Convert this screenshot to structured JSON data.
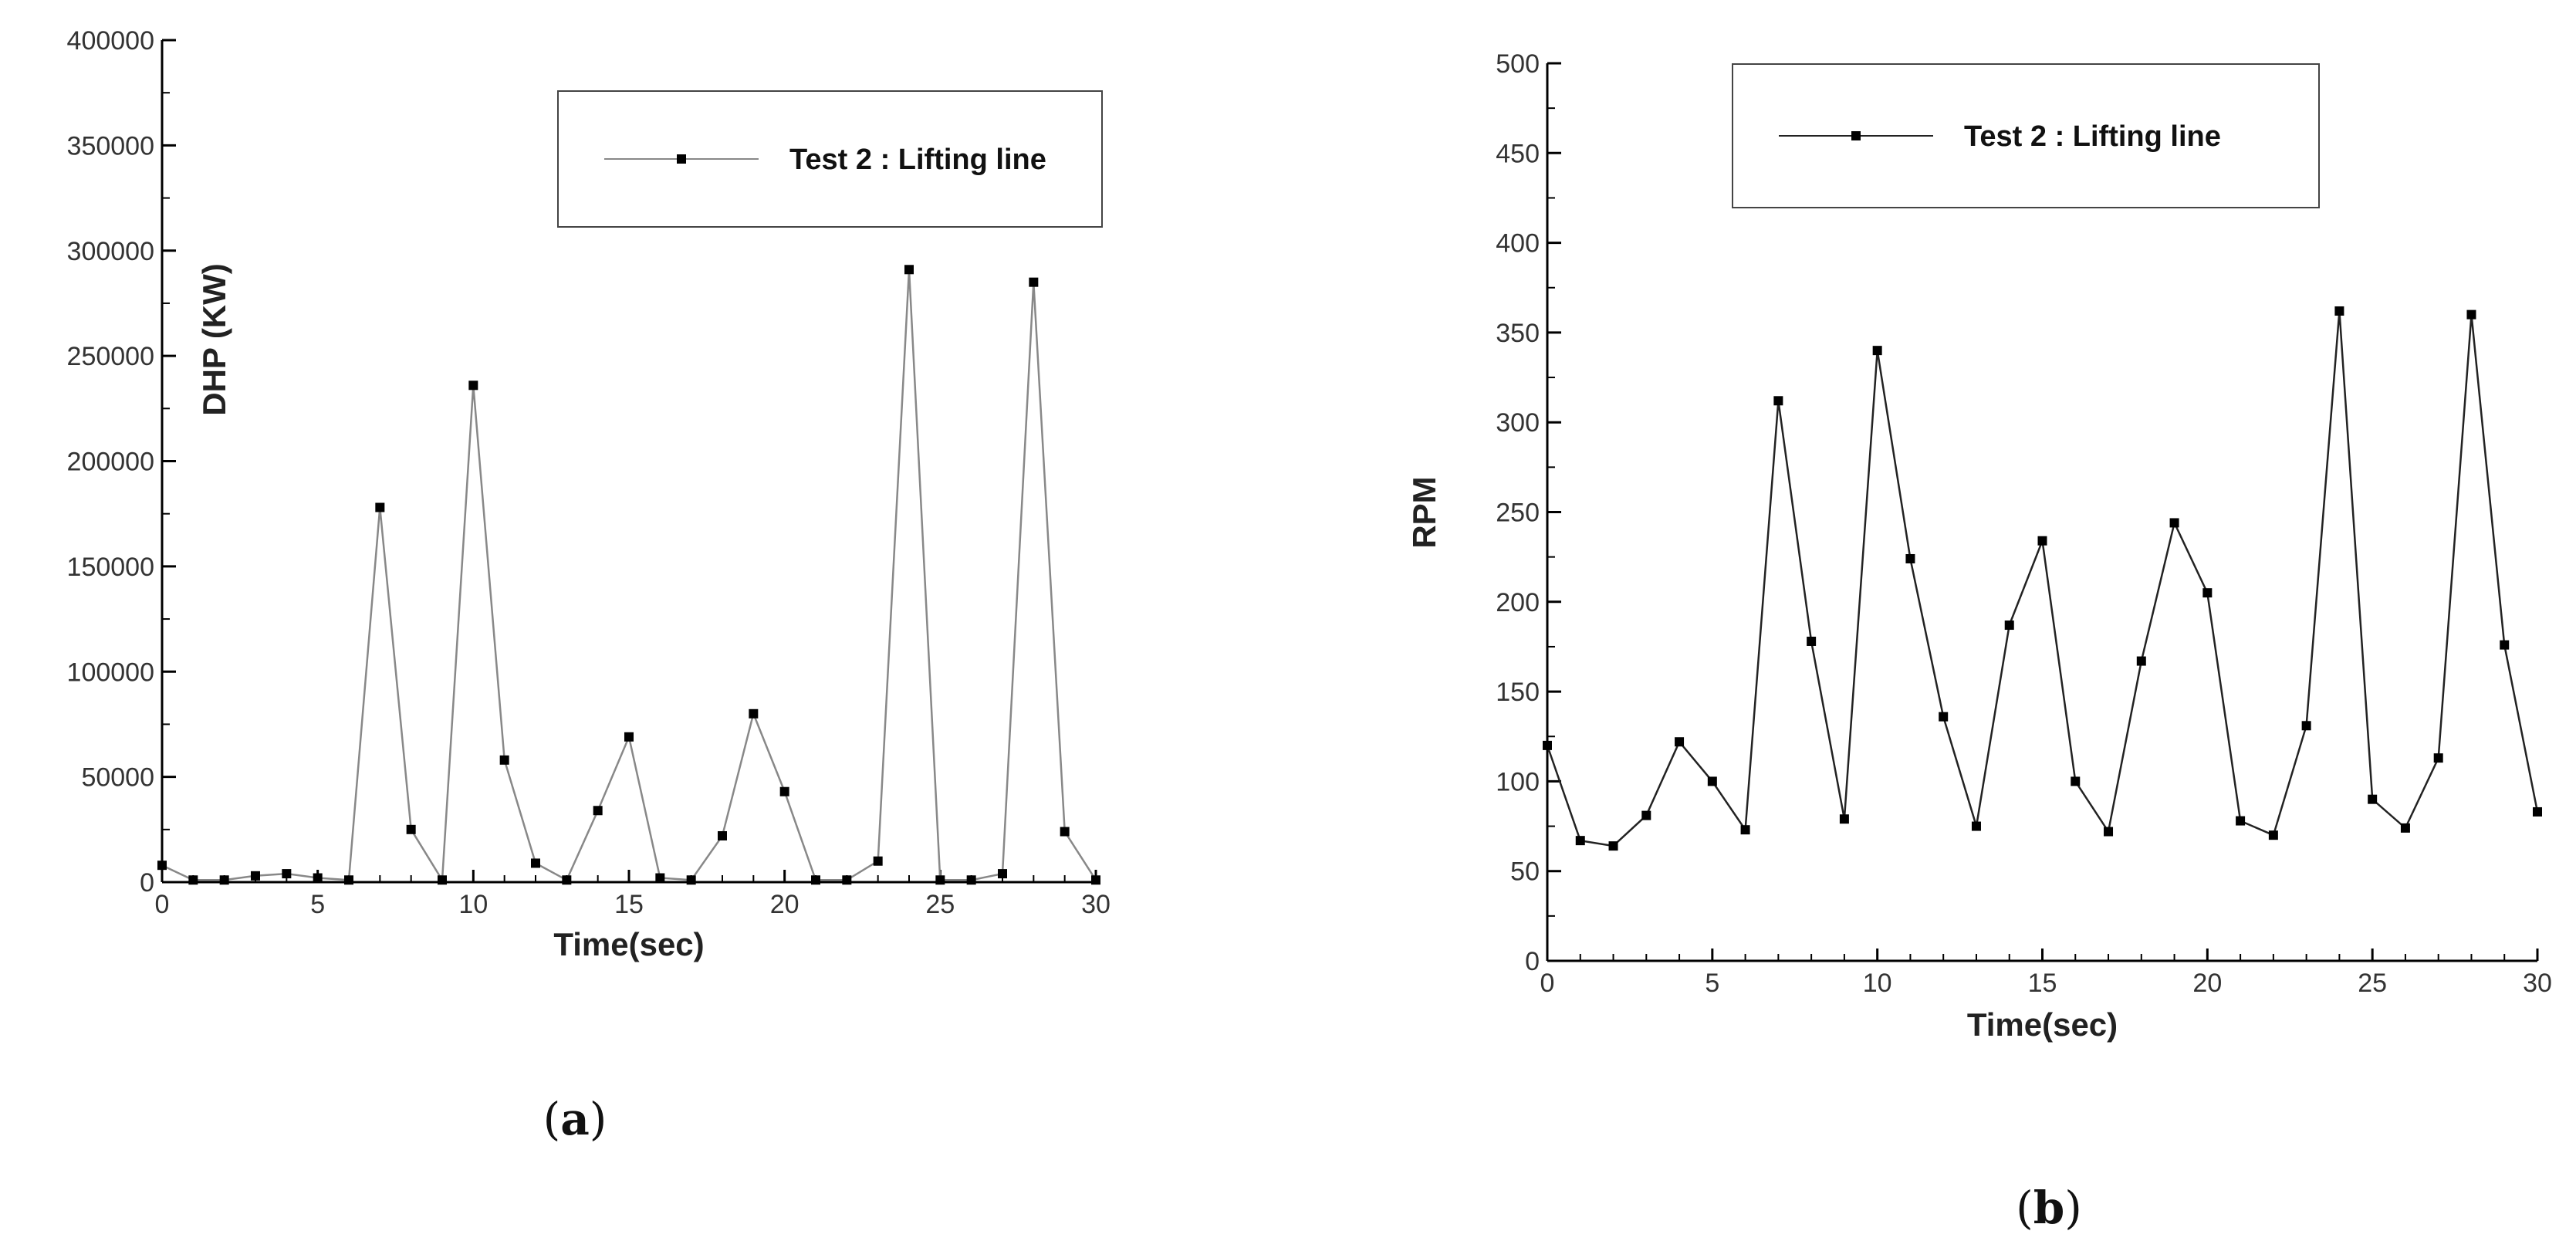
{
  "chart_data": [
    {
      "type": "line",
      "panel": "a",
      "panel_label": {
        "open": "(",
        "letter": "a",
        "close": ")"
      },
      "xlabel": "Time(sec)",
      "ylabel": "DHP (KW)",
      "xlim": [
        0,
        30
      ],
      "ylim": [
        0,
        400000
      ],
      "xticks": [
        0,
        5,
        10,
        15,
        20,
        25,
        30
      ],
      "yticks": [
        0,
        50000,
        100000,
        150000,
        200000,
        250000,
        300000,
        350000,
        400000
      ],
      "grid": false,
      "legend_placement": "top-right",
      "line_color": "#888888",
      "series": [
        {
          "name": "Test 2 : Lifting line",
          "x": [
            0,
            1,
            2,
            3,
            4,
            5,
            6,
            7,
            8,
            9,
            10,
            11,
            12,
            13,
            14,
            15,
            16,
            17,
            18,
            19,
            20,
            21,
            22,
            23,
            24,
            25,
            26,
            27,
            28,
            29,
            30
          ],
          "y": [
            8000,
            1000,
            1000,
            3000,
            4000,
            2000,
            1000,
            178000,
            25000,
            1000,
            236000,
            58000,
            9000,
            1000,
            34000,
            69000,
            2000,
            1000,
            22000,
            80000,
            43000,
            1000,
            1000,
            10000,
            291000,
            1000,
            1000,
            4000,
            285000,
            24000,
            1000
          ]
        }
      ]
    },
    {
      "type": "line",
      "panel": "b",
      "panel_label": {
        "open": "(",
        "letter": "b",
        "close": ")"
      },
      "xlabel": "Time(sec)",
      "ylabel": "RPM",
      "xlim": [
        0,
        30
      ],
      "ylim": [
        0,
        500
      ],
      "xticks": [
        0,
        5,
        10,
        15,
        20,
        25,
        30
      ],
      "yticks": [
        0,
        50,
        100,
        150,
        200,
        250,
        300,
        350,
        400,
        450,
        500
      ],
      "grid": false,
      "legend_placement": "top-right",
      "line_color": "#222222",
      "series": [
        {
          "name": "Test 2 : Lifting line",
          "x": [
            0,
            1,
            2,
            3,
            4,
            5,
            6,
            7,
            8,
            9,
            10,
            11,
            12,
            13,
            14,
            15,
            16,
            17,
            18,
            19,
            20,
            21,
            22,
            23,
            24,
            25,
            26,
            27,
            28,
            29,
            30
          ],
          "y": [
            120,
            67,
            64,
            81,
            122,
            100,
            73,
            312,
            178,
            79,
            340,
            224,
            136,
            75,
            187,
            234,
            100,
            72,
            167,
            244,
            205,
            78,
            70,
            131,
            362,
            90,
            74,
            113,
            360,
            176,
            83
          ]
        }
      ]
    }
  ]
}
